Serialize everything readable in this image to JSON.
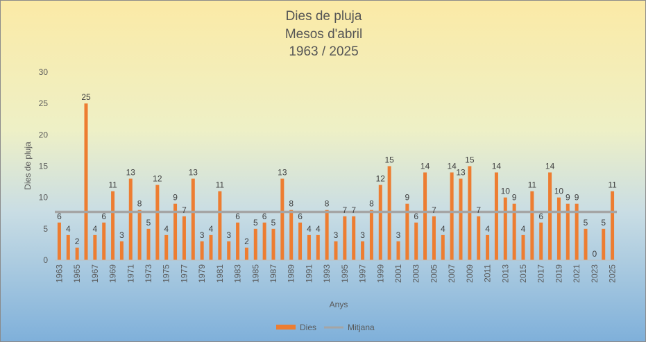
{
  "chart_data": {
    "type": "bar",
    "title": [
      "Dies de pluja",
      "Mesos d'abril",
      "1963 / 2025"
    ],
    "xlabel": "Anys",
    "ylabel": "Dies de pluja",
    "ylim": [
      0,
      30
    ],
    "yticks": [
      0,
      5,
      10,
      15,
      20,
      25,
      30
    ],
    "categories": [
      1963,
      1964,
      1965,
      1966,
      1967,
      1968,
      1969,
      1970,
      1971,
      1972,
      1973,
      1974,
      1975,
      1976,
      1977,
      1978,
      1979,
      1980,
      1981,
      1982,
      1983,
      1984,
      1985,
      1986,
      1987,
      1988,
      1989,
      1990,
      1991,
      1992,
      1993,
      1994,
      1995,
      1996,
      1997,
      1998,
      1999,
      2000,
      2001,
      2002,
      2003,
      2004,
      2005,
      2006,
      2007,
      2008,
      2009,
      2010,
      2011,
      2012,
      2013,
      2014,
      2015,
      2016,
      2017,
      2018,
      2019,
      2020,
      2021,
      2022,
      2023,
      2024,
      2025
    ],
    "x_tick_labels": [
      "1963",
      "1965",
      "1967",
      "1969",
      "1971",
      "1973",
      "1975",
      "1977",
      "1979",
      "1981",
      "1983",
      "1985",
      "1987",
      "1989",
      "1991",
      "1993",
      "1995",
      "1997",
      "1999",
      "2001",
      "2003",
      "2005",
      "2007",
      "2009",
      "2011",
      "2013",
      "2015",
      "2017",
      "2019",
      "2021",
      "2023",
      "2025"
    ],
    "series": [
      {
        "name": "Dies",
        "type": "bar",
        "color": "#ed7d31",
        "values": [
          6,
          4,
          2,
          25,
          4,
          6,
          11,
          3,
          13,
          8,
          5,
          12,
          4,
          9,
          7,
          13,
          3,
          4,
          11,
          3,
          6,
          2,
          5,
          6,
          5,
          13,
          8,
          6,
          4,
          4,
          8,
          3,
          7,
          7,
          3,
          8,
          12,
          15,
          3,
          9,
          6,
          14,
          7,
          4,
          14,
          13,
          15,
          7,
          4,
          14,
          10,
          9,
          4,
          11,
          6,
          14,
          10,
          9,
          9,
          5,
          0,
          5,
          11
        ]
      },
      {
        "name": "Mitjana",
        "type": "line",
        "color": "#a5a5a5",
        "value": 7.7
      }
    ],
    "legend_position": "bottom",
    "grid": false
  }
}
